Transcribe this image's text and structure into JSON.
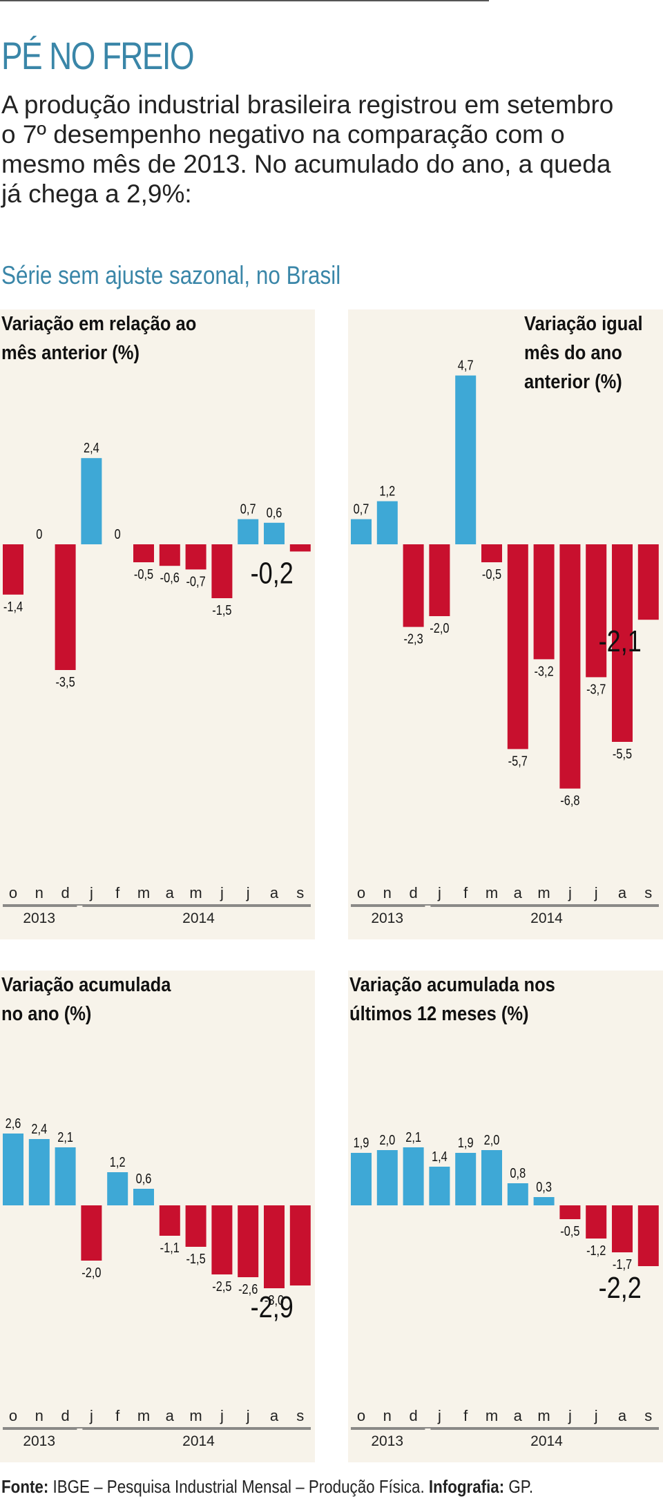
{
  "title": "PÉ NO FREIO",
  "intro": "A produção industrial brasileira registrou em setembro o 7º desempenho negativo na comparação com o mesmo mês de 2013. No acumulado do ano, a queda já chega a 2,9%:",
  "section_title": "Série sem ajuste sazonal, no Brasil",
  "colors": {
    "positive": "#3ea8d6",
    "negative": "#c8102e",
    "panel_bg": "#f7f3ea",
    "title": "#3a86a8"
  },
  "footer": {
    "source_label": "Fonte:",
    "source_text": " IBGE – Pesquisa Industrial Mensal – Produção Física. ",
    "credit_label": "Infografia:",
    "credit_text": " GP."
  },
  "chart_data": [
    {
      "type": "bar",
      "title_lines": [
        "Variação em relação ao",
        "mês anterior (%)"
      ],
      "categories": [
        "o",
        "n",
        "d",
        "j",
        "f",
        "m",
        "a",
        "m",
        "j",
        "j",
        "a",
        "s"
      ],
      "years": [
        "2013",
        "2014"
      ],
      "values": [
        -1.4,
        0,
        -3.5,
        2.4,
        0,
        -0.5,
        -0.6,
        -0.7,
        -1.5,
        0.7,
        0.6,
        -0.2
      ],
      "labels": [
        "-1,4",
        "0",
        "-3,5",
        "2,4",
        "0",
        "-0,5",
        "-0,6",
        "-0,7",
        "-1,5",
        "0,7",
        "0,6",
        "-0,2"
      ],
      "highlight": "-0,2"
    },
    {
      "type": "bar",
      "title_lines": [
        "Variação igual",
        "mês do ano",
        "anterior (%)"
      ],
      "categories": [
        "o",
        "n",
        "d",
        "j",
        "f",
        "m",
        "a",
        "m",
        "j",
        "j",
        "a",
        "s"
      ],
      "years": [
        "2013",
        "2014"
      ],
      "values": [
        0.7,
        1.2,
        -2.3,
        -2.0,
        4.7,
        -0.5,
        -5.7,
        -3.2,
        -6.8,
        -3.7,
        -5.5,
        -2.1
      ],
      "labels": [
        "0,7",
        "1,2",
        "-2,3",
        "-2,0",
        "4,7",
        "-0,5",
        "-5,7",
        "-3,2",
        "-6,8",
        "-3,7",
        "-5,5",
        "-2,1"
      ],
      "highlight": "-2,1"
    },
    {
      "type": "bar",
      "title_lines": [
        "Variação acumulada",
        "no ano (%)"
      ],
      "categories": [
        "o",
        "n",
        "d",
        "j",
        "f",
        "m",
        "a",
        "m",
        "j",
        "j",
        "a",
        "s"
      ],
      "years": [
        "2013",
        "2014"
      ],
      "values": [
        2.6,
        2.4,
        2.1,
        -2.0,
        1.2,
        0.6,
        -1.1,
        -1.5,
        -2.5,
        -2.6,
        -3.0,
        -2.9
      ],
      "labels": [
        "2,6",
        "2,4",
        "2,1",
        "-2,0",
        "1,2",
        "0,6",
        "-1,1",
        "-1,5",
        "-2,5",
        "-2,6",
        "-3,0",
        "-2,9"
      ],
      "highlight": "-2,9"
    },
    {
      "type": "bar",
      "title_lines": [
        "Variação acumulada nos",
        "últimos 12 meses (%)"
      ],
      "categories": [
        "o",
        "n",
        "d",
        "j",
        "f",
        "m",
        "a",
        "m",
        "j",
        "j",
        "a",
        "s"
      ],
      "years": [
        "2013",
        "2014"
      ],
      "values": [
        1.9,
        2.0,
        2.1,
        1.4,
        1.9,
        2.0,
        0.8,
        0.3,
        -0.5,
        -1.2,
        -1.7,
        -2.2
      ],
      "labels": [
        "1,9",
        "2,0",
        "2,1",
        "1,4",
        "1,9",
        "2,0",
        "0,8",
        "0,3",
        "-0,5",
        "-1,2",
        "-1,7",
        "-2,2"
      ],
      "highlight": "-2,2"
    }
  ]
}
